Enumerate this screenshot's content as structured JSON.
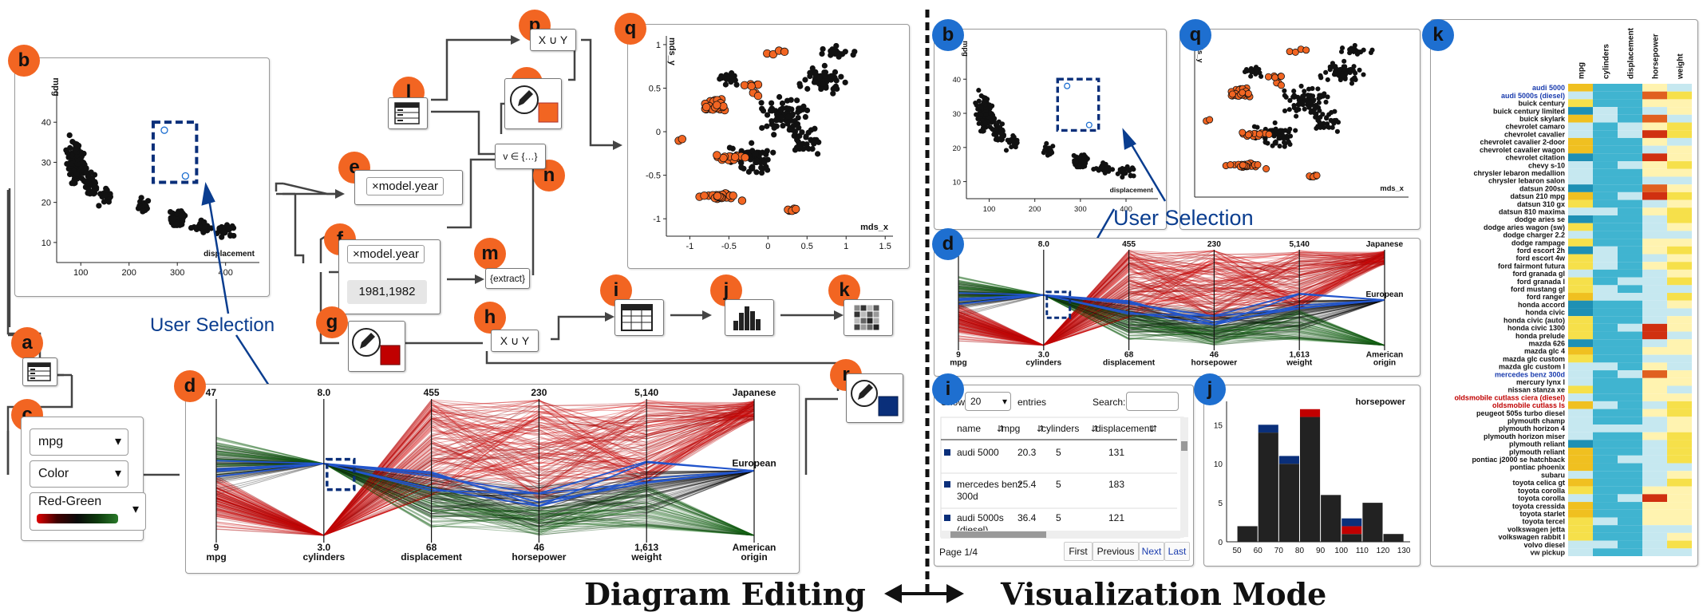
{
  "colors": {
    "orange": "#f26522",
    "blue": "#1e6fd0",
    "navy": "#0a2f7a",
    "red": "#c00000"
  },
  "badges": {
    "a": "a",
    "b": "b",
    "c": "c",
    "d": "d",
    "e": "e",
    "f": "f",
    "g": "g",
    "h": "h",
    "i": "i",
    "j": "j",
    "k": "k",
    "l": "l",
    "m": "m",
    "n": "n",
    "o": "o",
    "p": "p",
    "q": "q",
    "r": "r"
  },
  "editing": {
    "scatter": {
      "ylabel": "mpg",
      "xlabel": "displacement",
      "yticks": [
        "40",
        "30",
        "20",
        "10"
      ],
      "xticks": [
        "100",
        "200",
        "300",
        "400"
      ]
    },
    "mds": {
      "ylabel": "mds_y",
      "xlabel": "mds_x",
      "yticks": [
        "1",
        "0.5",
        "0",
        "-0.5",
        "-1"
      ],
      "xticks": [
        "-1",
        "-0.5",
        "0",
        "0.5",
        "1",
        "1.5"
      ]
    },
    "parallel": {
      "axes": [
        "mpg",
        "cylinders",
        "displacement",
        "horsepower",
        "weight",
        "origin"
      ],
      "top": [
        "47",
        "8.0",
        "455",
        "230",
        "5,140",
        "Japanese"
      ],
      "bottom": [
        "9",
        "3.0",
        "68",
        "46",
        "1,613",
        "American"
      ],
      "mid": "European"
    },
    "attr_chip": "model.year",
    "f_chip": "model.year",
    "f_values": "1981,1982",
    "extract": "{extract}",
    "union": "X ∪ Y",
    "inset": "v ∈ {…}",
    "c_selects": [
      "mpg",
      "Color",
      "Red-Green"
    ],
    "user_selection": "User Selection"
  },
  "viz": {
    "user_selection": "User Selection",
    "table": {
      "show_label": "Show",
      "show_value": "20",
      "entries": "entries",
      "search": "Search:",
      "columns": [
        "name",
        "mpg",
        "cylinders",
        "displacement"
      ],
      "rows": [
        [
          "audi 5000",
          "20.3",
          "5",
          "131"
        ],
        [
          "mercedes benz 300d",
          "25.4",
          "5",
          "183"
        ],
        [
          "audi 5000s (diesel)",
          "36.4",
          "5",
          "121"
        ]
      ],
      "page": "Page 1/4",
      "buttons": [
        "First",
        "Previous",
        "Next",
        "Last"
      ]
    },
    "histogram": {
      "title": "horsepower",
      "xticks": [
        "50",
        "60",
        "70",
        "80",
        "90",
        "100",
        "110",
        "120",
        "130"
      ],
      "yticks": [
        "15",
        "10",
        "5",
        "0"
      ]
    },
    "heatmap": {
      "columns": [
        "mpg",
        "cylinders",
        "displacement",
        "horsepower",
        "weight"
      ],
      "rows": [
        "audi 5000",
        "audi 5000s (diesel)",
        "buick century",
        "buick century limited",
        "buick skylark",
        "chevrolet camaro",
        "chevrolet cavalier",
        "chevrolet cavalier 2-door",
        "chevrolet cavalier wagon",
        "chevrolet citation",
        "chevy s-10",
        "chrysler lebaron medallion",
        "chrysler lebaron salon",
        "datsun 200sx",
        "datsun 210 mpg",
        "datsun 310 gx",
        "datsun 810 maxima",
        "dodge aries se",
        "dodge aries wagon (sw)",
        "dodge charger 2.2",
        "dodge rampage",
        "ford escort 2h",
        "ford escort 4w",
        "ford fairmont futura",
        "ford granada gl",
        "ford granada l",
        "ford mustang gl",
        "ford ranger",
        "honda accord",
        "honda civic",
        "honda civic (auto)",
        "honda civic 1300",
        "honda prelude",
        "mazda 626",
        "mazda glc 4",
        "mazda glc custom",
        "mazda glc custom l",
        "mercedes benz 300d",
        "mercury lynx l",
        "nissan stanza xe",
        "oldsmobile cutlass ciera (diesel)",
        "oldsmobile cutlass ls",
        "peugeot 505s turbo diesel",
        "plymouth champ",
        "plymouth horizon 4",
        "plymouth horizon miser",
        "plymouth reliant",
        "plymouth reliant",
        "pontiac j2000 se hatchback",
        "pontiac phoenix",
        "subaru",
        "toyota celica gt",
        "toyota corolla",
        "toyota corolla",
        "toyota cressida",
        "toyota starlet",
        "toyota tercel",
        "volkswagen jetta",
        "volkswagen rabbit l",
        "volvo diesel",
        "vw pickup"
      ],
      "blue_rows": [
        0,
        1,
        37
      ],
      "red_rows": [
        40,
        41
      ]
    }
  },
  "footer": {
    "left": "Diagram Editing",
    "right": "Visualization Mode"
  }
}
